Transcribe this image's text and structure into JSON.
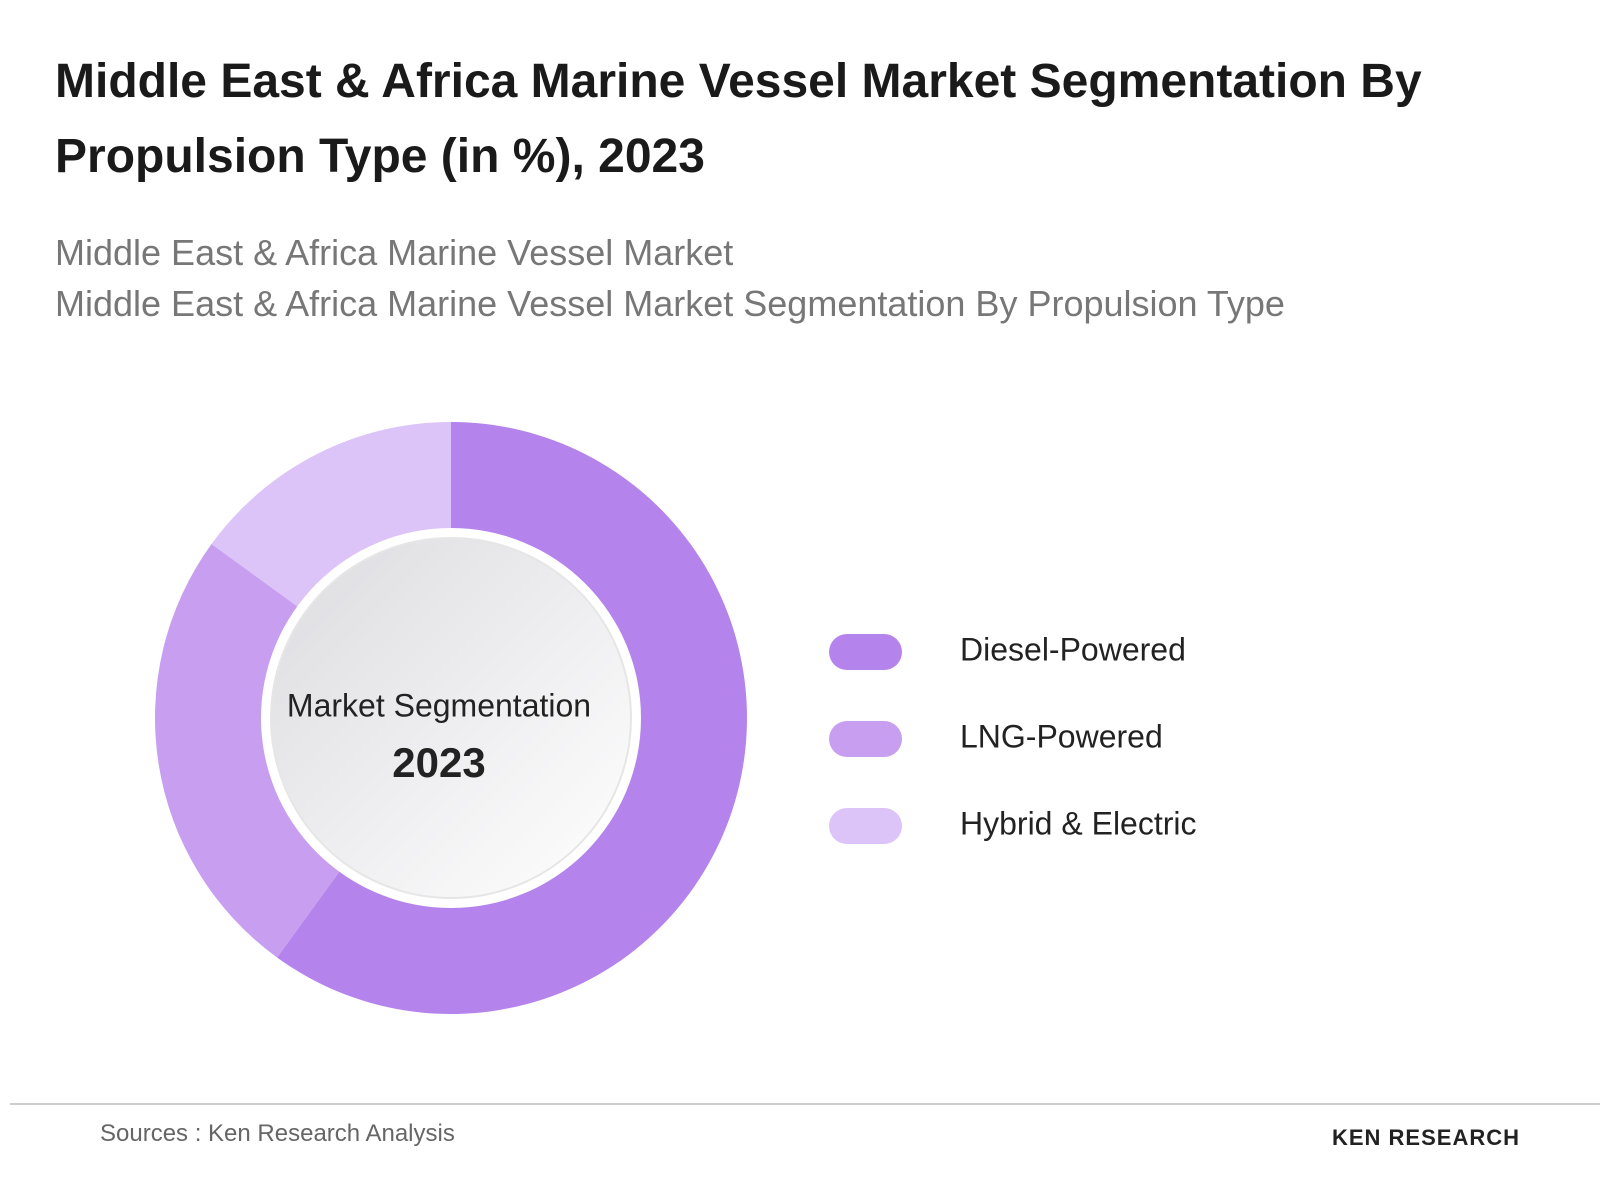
{
  "chart_data": {
    "type": "donut",
    "title": "Middle East & Africa Marine Vessel Market Segmentation By Propulsion Type (in %), 2023",
    "subtitle": [
      "Middle East & Africa Marine Vessel Market",
      "Middle East & Africa Marine Vessel Market Segmentation By Propulsion Type"
    ],
    "center_label": "Market Segmentation",
    "center_year": "2023",
    "categories": [
      "Diesel-Powered",
      "LNG-Powered",
      "Hybrid & Electric"
    ],
    "values": [
      60,
      25,
      15
    ],
    "colors": [
      "#b583ec",
      "#c89ff0",
      "#dcc3f8"
    ]
  },
  "footer": {
    "source": "Sources : Ken Research Analysis",
    "logo": "KEN RESEARCH"
  }
}
